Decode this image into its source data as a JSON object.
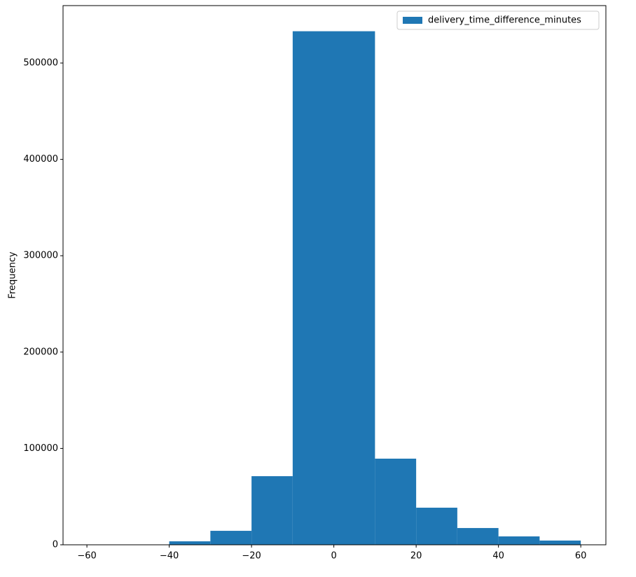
{
  "chart_data": {
    "type": "histogram",
    "y_label": "Frequency",
    "bins": [
      -60,
      -50,
      -40,
      -30,
      -20,
      -10,
      10,
      20,
      30,
      40,
      50,
      60
    ],
    "series": [
      {
        "name": "delivery_time_difference_minutes",
        "color": "#1f77b4",
        "values": [
          0,
          0,
          3600,
          14500,
          71200,
          533000,
          89400,
          38500,
          17400,
          8700,
          4400
        ]
      }
    ],
    "xlim": [
      -65.8,
      66.1
    ],
    "xticks": [
      {
        "value": -60,
        "label": "−60"
      },
      {
        "value": -40,
        "label": "−40"
      },
      {
        "value": -20,
        "label": "−20"
      },
      0,
      20,
      40,
      60
    ],
    "ylim": [
      0,
      559600
    ],
    "yticks": [
      0,
      100000,
      200000,
      300000,
      400000,
      500000
    ],
    "legend": "upper-right"
  }
}
